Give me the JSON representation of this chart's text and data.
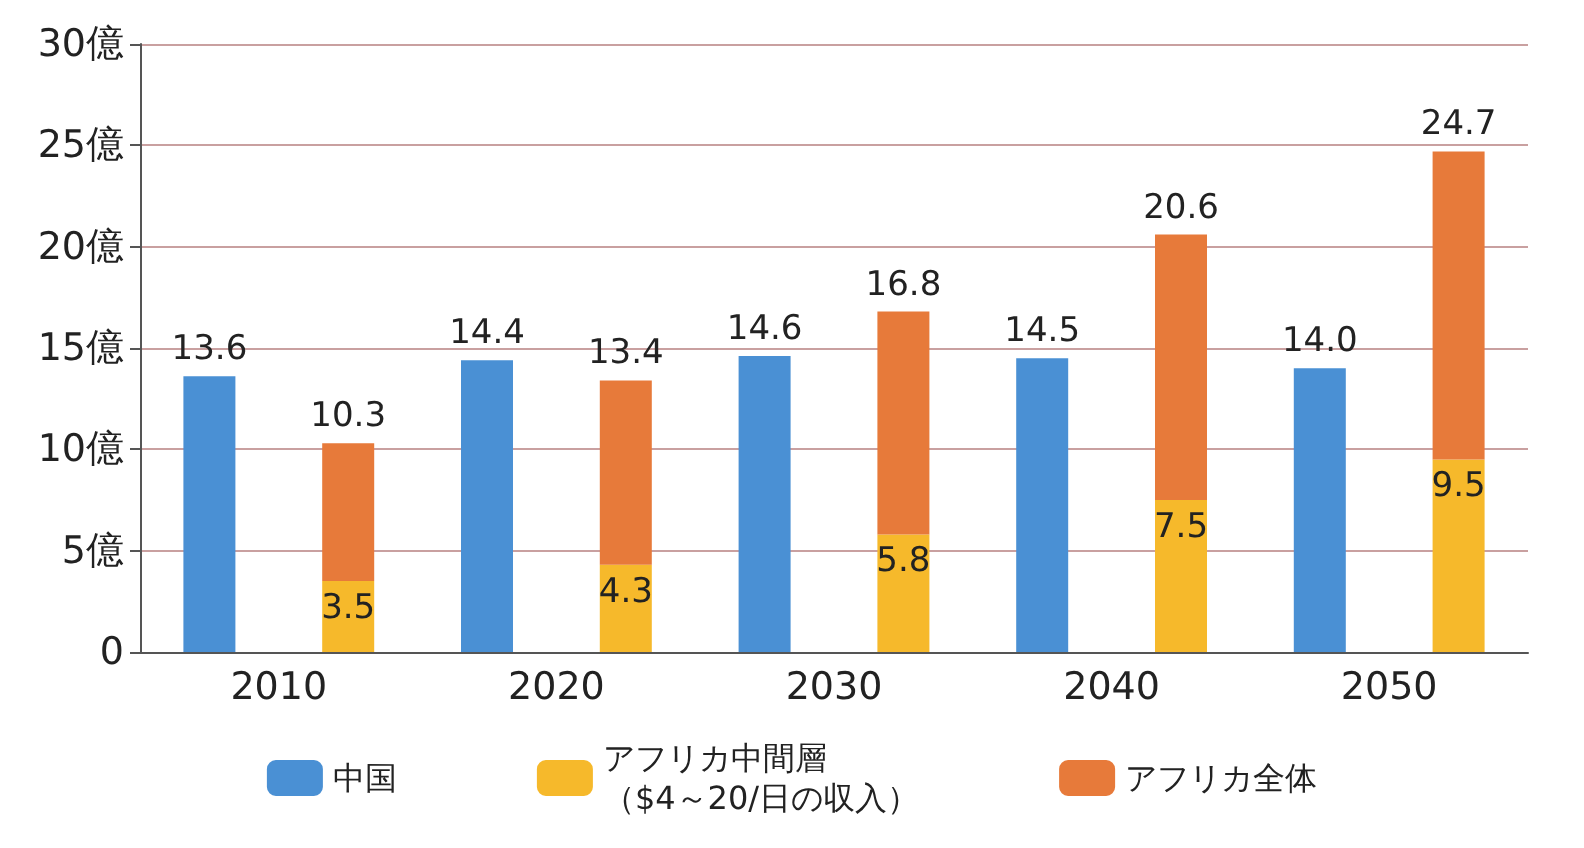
{
  "chart_data": {
    "type": "bar",
    "categories": [
      "2010",
      null,
      "2020",
      null,
      "2030",
      null,
      "2040",
      null,
      "2050",
      null
    ],
    "series": [
      {
        "name": "中国",
        "color": "#4a90d4",
        "values": [
          13.6,
          null,
          14.4,
          null,
          14.6,
          null,
          14.5,
          null,
          14.0,
          null
        ],
        "value_labels": [
          "13.6",
          null,
          "14.4",
          null,
          "14.6",
          null,
          "14.5",
          null,
          "14.0",
          null
        ]
      },
      {
        "name": "アフリカ中間層（$4～20/日の収入）",
        "color": "#f6b92b",
        "values": [
          null,
          3.5,
          null,
          4.3,
          null,
          5.8,
          null,
          7.5,
          null,
          9.5
        ],
        "value_labels": [
          null,
          "3.5",
          null,
          "4.3",
          null,
          "5.8",
          null,
          "7.5",
          null,
          "9.5"
        ]
      },
      {
        "name": "アフリカ全体",
        "color": "#e77a3a",
        "values": [
          null,
          6.8,
          null,
          9.1,
          null,
          11.0,
          null,
          13.1,
          null,
          15.2
        ]
      }
    ],
    "stacked": true,
    "totals": [
      null,
      "10.3",
      null,
      "13.4",
      null,
      "16.8",
      null,
      "20.6",
      null,
      "24.7"
    ],
    "ylim": [
      0,
      30
    ],
    "yticks": [
      0,
      {
        "value": 5,
        "label": "5億"
      },
      {
        "value": 10,
        "label": "10億"
      },
      {
        "value": 15,
        "label": "15億"
      },
      {
        "value": 20,
        "label": "20億"
      },
      {
        "value": 25,
        "label": "25億"
      },
      {
        "value": 30,
        "label": "30億"
      }
    ],
    "grid": "y",
    "legend": "bottom"
  }
}
